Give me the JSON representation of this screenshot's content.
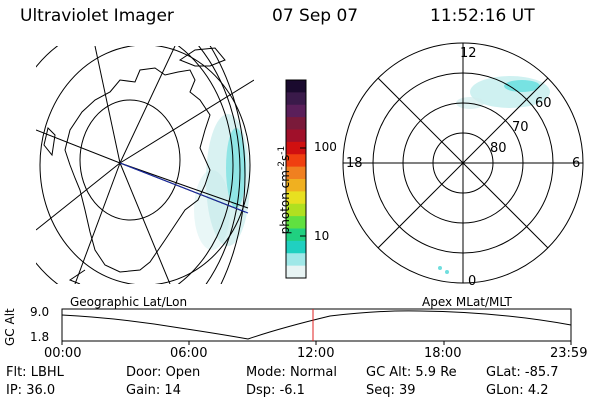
{
  "header": {
    "instrument": "Ultraviolet Imager",
    "date": "07 Sep 07",
    "time": "11:52:16 UT"
  },
  "colorbar": {
    "unit_label": "photon cm",
    "unit_exp": "-2",
    "unit_s": "s",
    "unit_s_exp": "-1",
    "ticks": [
      "100",
      "10"
    ],
    "colors": [
      "#1a0a2e",
      "#3a1a4a",
      "#5a1f5a",
      "#7a1a3a",
      "#a0102a",
      "#d01010",
      "#f04010",
      "#f08020",
      "#f0b020",
      "#e8e020",
      "#b0e020",
      "#60e040",
      "#20d080",
      "#20d0c0",
      "#a0e8e8",
      "#e8f4f4"
    ]
  },
  "geo_map": {
    "label": "Geographic Lat/Lon"
  },
  "polar_plot": {
    "label": "Apex MLat/MLT",
    "mlt_labels": {
      "top": "12",
      "left": "18",
      "right": "6",
      "bottom": "0"
    },
    "lat_labels": [
      "60",
      "70",
      "80"
    ]
  },
  "alt_plot": {
    "axis_label": "GC Alt",
    "ymax": "9.0",
    "ymin": "1.8",
    "x_ticks": [
      "00:00",
      "06:00",
      "12:00",
      "18:00",
      "23:59"
    ],
    "marker_color": "#e02020"
  },
  "status": {
    "row1": [
      {
        "key": "Flt:",
        "value": "LBHL"
      },
      {
        "key": "Door:",
        "value": "Open"
      },
      {
        "key": "Mode:",
        "value": "Normal"
      },
      {
        "key": "GC Alt:",
        "value": "5.9 Re"
      },
      {
        "key": "GLat:",
        "value": "-85.7"
      }
    ],
    "row2": [
      {
        "key": "IP:",
        "value": "36.0"
      },
      {
        "key": "Gain:",
        "value": "14"
      },
      {
        "key": "Dsp:",
        "value": "-6.1"
      },
      {
        "key": "Seq:",
        "value": "39"
      },
      {
        "key": "GLon:",
        "value": "4.2"
      }
    ]
  }
}
